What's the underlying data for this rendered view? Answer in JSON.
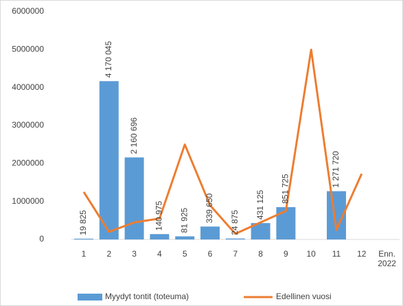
{
  "chart_data": {
    "type": "bar+line",
    "categories": [
      "1",
      "2",
      "3",
      "4",
      "5",
      "6",
      "7",
      "8",
      "9",
      "10",
      "11",
      "12",
      "Enn. 2022"
    ],
    "series": [
      {
        "name": "Myydyt tontit (toteuma)",
        "type": "bar",
        "color": "#5b9bd5",
        "values": [
          19825,
          4170045,
          2160696,
          140975,
          81925,
          339650,
          24875,
          431125,
          851725,
          null,
          1271720,
          null,
          null
        ],
        "value_labels": [
          "19 825",
          "4 170 045",
          "2 160 696",
          "140 975",
          "81 925",
          "339 650",
          "24 875",
          "431 125",
          "851 725",
          null,
          "1 271 720",
          null,
          null
        ]
      },
      {
        "name": "Edellinen vuosi",
        "type": "line",
        "color": "#ed7d31",
        "values": [
          1250000,
          200000,
          450000,
          550000,
          2500000,
          900000,
          150000,
          450000,
          750000,
          5000000,
          250000,
          1730000,
          null
        ]
      }
    ],
    "ylim": [
      0,
      6000000
    ],
    "yticks": [
      0,
      1000000,
      2000000,
      3000000,
      4000000,
      5000000,
      6000000
    ],
    "grid": false,
    "legend": "bottom"
  }
}
